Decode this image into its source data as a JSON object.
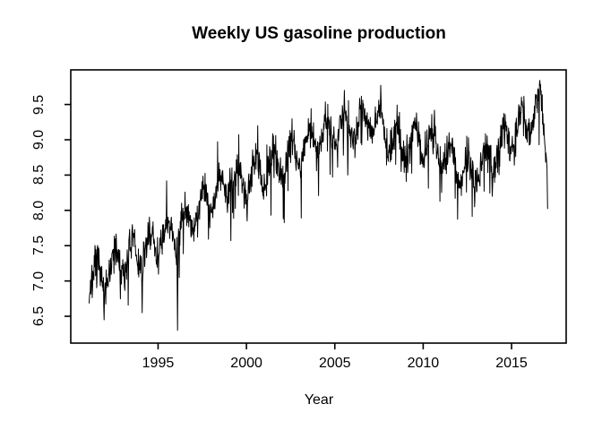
{
  "figure": {
    "background_color": "#ffffff",
    "foreground_color": "#000000"
  },
  "chart_data": {
    "type": "line",
    "title": "Weekly US gasoline production",
    "xlabel": "Year",
    "ylabel": "",
    "grid": false,
    "legend": null,
    "xlim": [
      1990.06,
      2018.09
    ],
    "ylim": [
      6.12,
      9.99
    ],
    "x_tick_labels": [
      "1995",
      "2000",
      "2005",
      "2010",
      "2015"
    ],
    "x_tick_values": [
      1995,
      2000,
      2005,
      2010,
      2015
    ],
    "y_tick_labels": [
      "6.5",
      "7.0",
      "7.5",
      "8.0",
      "8.5",
      "9.0",
      "9.5"
    ],
    "y_tick_values": [
      6.5,
      7.0,
      7.5,
      8.0,
      8.5,
      9.0,
      9.5
    ],
    "series": [
      {
        "name": "weekly-us-gasoline-production",
        "color": "#000000",
        "line_width": 1,
        "x_start": 1991.1,
        "x_end": 2017.05,
        "points_per_year": 52,
        "trend": [
          [
            1991.1,
            7.0
          ],
          [
            1992,
            7.1
          ],
          [
            1993,
            7.3
          ],
          [
            1994,
            7.4
          ],
          [
            1995,
            7.55
          ],
          [
            1996,
            7.7
          ],
          [
            1997,
            7.95
          ],
          [
            1998,
            8.2
          ],
          [
            1999,
            8.4
          ],
          [
            2000,
            8.45
          ],
          [
            2001,
            8.55
          ],
          [
            2002,
            8.7
          ],
          [
            2003,
            8.85
          ],
          [
            2004,
            9.0
          ],
          [
            2005,
            9.15
          ],
          [
            2006,
            9.2
          ],
          [
            2007,
            9.3
          ],
          [
            2008,
            9.05
          ],
          [
            2009,
            8.95
          ],
          [
            2010,
            9.0
          ],
          [
            2011,
            8.85
          ],
          [
            2012,
            8.6
          ],
          [
            2013,
            8.6
          ],
          [
            2014,
            8.8
          ],
          [
            2015,
            9.05
          ],
          [
            2016,
            9.3
          ],
          [
            2016.7,
            9.45
          ],
          [
            2017.05,
            8.6
          ]
        ],
        "seasonal_amplitude": 0.22,
        "noise_sd": 0.12,
        "random_seed": 7,
        "notable_lows": [
          [
            1991.95,
            6.45
          ],
          [
            1994.1,
            6.55
          ],
          [
            1996.1,
            6.3
          ],
          [
            2000.05,
            7.85
          ],
          [
            2005.73,
            8.5
          ],
          [
            2008.75,
            8.55
          ],
          [
            2012.9,
            8.05
          ],
          [
            2013.9,
            8.2
          ],
          [
            2017.05,
            8.02
          ]
        ],
        "notable_highs": [
          [
            2005.55,
            9.7
          ],
          [
            2007.6,
            9.77
          ],
          [
            2016.6,
            9.84
          ]
        ]
      }
    ]
  }
}
